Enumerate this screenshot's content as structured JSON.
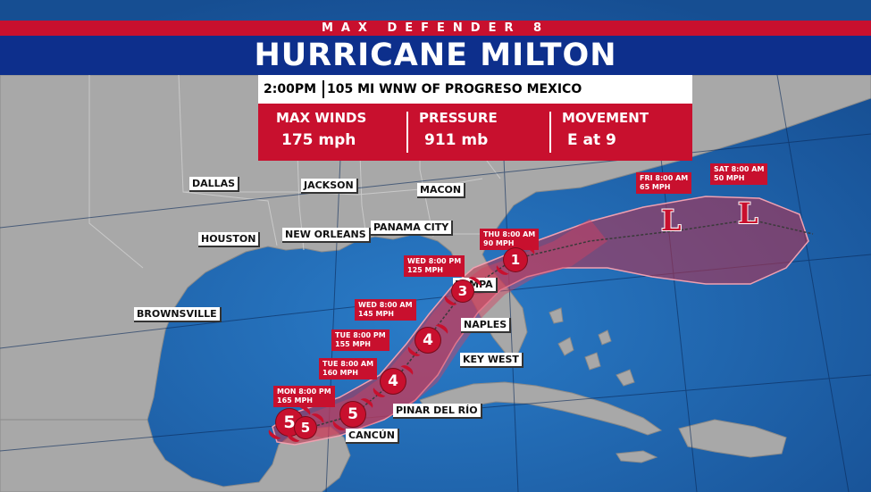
{
  "header": {
    "brand": "MAX DEFENDER 8",
    "title": "HURRICANE MILTON"
  },
  "advisory": {
    "time": "2:00PM",
    "location": "105 MI WNW OF PROGRESO MEXICO"
  },
  "stats": [
    {
      "label": "MAX WINDS",
      "value": "175 mph"
    },
    {
      "label": "PRESSURE",
      "value": "911 mb"
    },
    {
      "label": "MOVEMENT",
      "value": "E at 9"
    }
  ],
  "cities": {
    "dallas": "DALLAS",
    "jackson": "JACKSON",
    "macon": "MACON",
    "houston": "HOUSTON",
    "new_orleans": "NEW ORLEANS",
    "panama_city": "PANAMA CITY",
    "brownsville": "BROWNSVILLE",
    "tampa": "TAMPA",
    "naples": "NAPLES",
    "key_west": "KEY WEST",
    "pinar_del_rio": "PINAR DEL RÍO",
    "cancun": "CANCÚN"
  },
  "forecast": [
    {
      "time": "MON 8:00 PM",
      "wind": "165 MPH",
      "category": "5"
    },
    {
      "time": "TUE 8:00 AM",
      "wind": "160 MPH",
      "category": "5"
    },
    {
      "time": "TUE 8:00 PM",
      "wind": "155 MPH",
      "category": "4"
    },
    {
      "time": "WED 8:00 AM",
      "wind": "145 MPH",
      "category": "4"
    },
    {
      "time": "WED 8:00 PM",
      "wind": "125 MPH",
      "category": "3"
    },
    {
      "time": "THU 8:00 AM",
      "wind": "90 MPH",
      "category": "1"
    },
    {
      "time": "FRI 8:00 AM",
      "wind": "65 MPH",
      "category": "L"
    },
    {
      "time": "SAT 8:00 AM",
      "wind": "50 MPH",
      "category": "L"
    }
  ],
  "current": {
    "category": "5"
  },
  "colors": {
    "ocean": "#1c5fa8",
    "land": "#a9a9a9",
    "alert_red": "#c8102e",
    "header_blue": "#0d2f8c"
  }
}
